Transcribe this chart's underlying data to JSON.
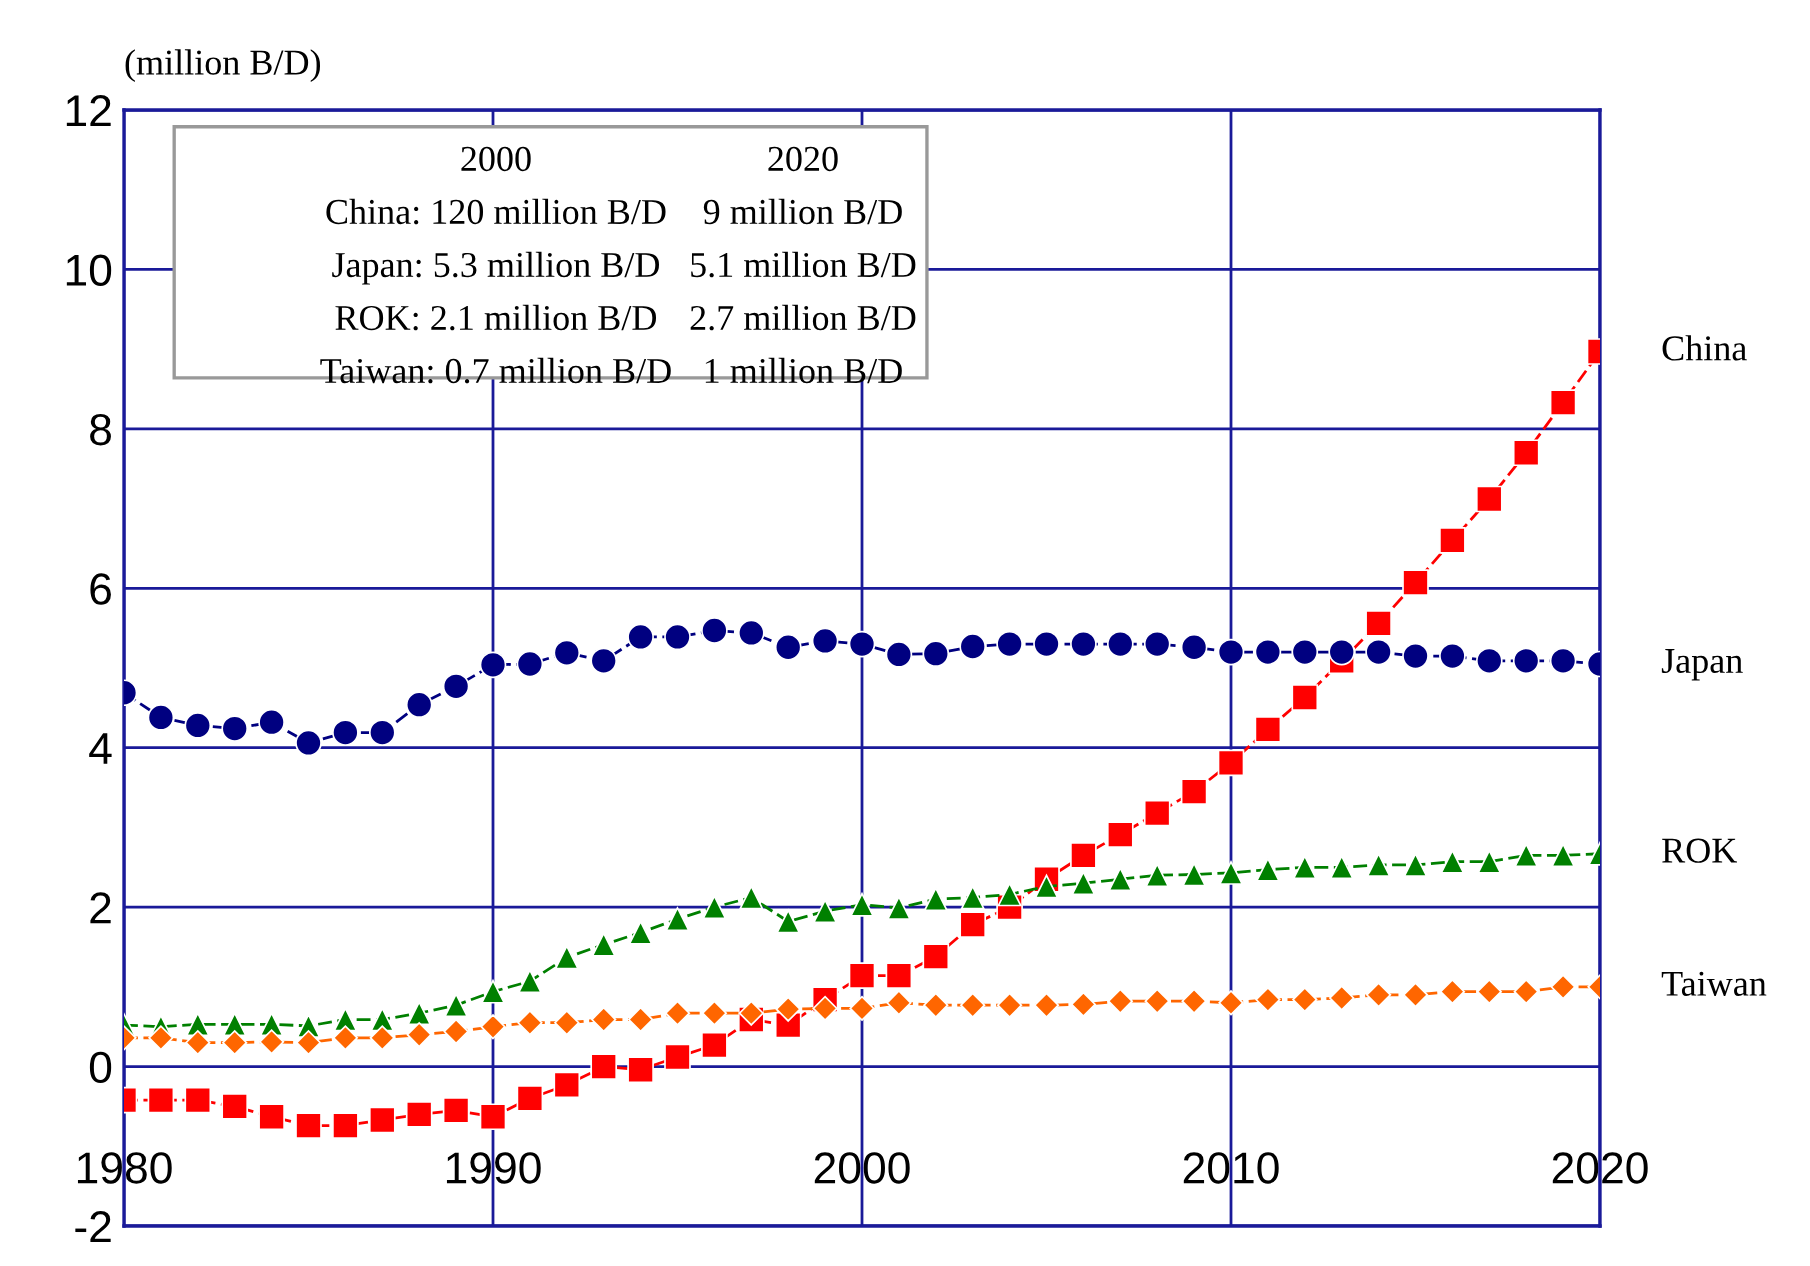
{
  "chart_data": {
    "type": "line",
    "ylabel": "(million B/D)",
    "x": [
      1980,
      1981,
      1982,
      1983,
      1984,
      1985,
      1986,
      1987,
      1988,
      1989,
      1990,
      1991,
      1992,
      1993,
      1994,
      1995,
      1996,
      1997,
      1998,
      1999,
      2000,
      2001,
      2002,
      2003,
      2004,
      2005,
      2006,
      2007,
      2008,
      2009,
      2010,
      2011,
      2012,
      2013,
      2014,
      2015,
      2016,
      2017,
      2018,
      2019,
      2020
    ],
    "series": [
      {
        "name": "China",
        "color": "#ff0000",
        "marker": "square",
        "values": [
          -0.42,
          -0.42,
          -0.42,
          -0.5,
          -0.63,
          -0.74,
          -0.74,
          -0.67,
          -0.6,
          -0.55,
          -0.63,
          -0.4,
          -0.23,
          0.0,
          -0.04,
          0.12,
          0.27,
          0.59,
          0.52,
          0.84,
          1.14,
          1.14,
          1.38,
          1.78,
          2.0,
          2.35,
          2.65,
          2.91,
          3.18,
          3.45,
          3.81,
          4.23,
          4.63,
          5.09,
          5.56,
          6.07,
          6.6,
          7.12,
          7.7,
          8.33,
          8.97
        ]
      },
      {
        "name": "Japan",
        "color": "#000080",
        "marker": "circle",
        "values": [
          4.69,
          4.38,
          4.28,
          4.24,
          4.32,
          4.06,
          4.19,
          4.19,
          4.54,
          4.77,
          5.04,
          5.05,
          5.19,
          5.09,
          5.39,
          5.39,
          5.47,
          5.44,
          5.26,
          5.34,
          5.3,
          5.17,
          5.18,
          5.27,
          5.3,
          5.3,
          5.3,
          5.3,
          5.3,
          5.26,
          5.2,
          5.2,
          5.2,
          5.2,
          5.2,
          5.15,
          5.15,
          5.09,
          5.09,
          5.09,
          5.05
        ]
      },
      {
        "name": "ROK",
        "color": "#008000",
        "marker": "triangle",
        "values": [
          0.52,
          0.5,
          0.53,
          0.53,
          0.53,
          0.51,
          0.59,
          0.59,
          0.67,
          0.77,
          0.94,
          1.07,
          1.37,
          1.53,
          1.68,
          1.85,
          2.0,
          2.12,
          1.82,
          1.95,
          2.03,
          1.99,
          2.1,
          2.12,
          2.16,
          2.26,
          2.3,
          2.35,
          2.4,
          2.41,
          2.43,
          2.47,
          2.5,
          2.5,
          2.53,
          2.53,
          2.57,
          2.57,
          2.65,
          2.65,
          2.67
        ]
      },
      {
        "name": "Taiwan",
        "color": "#ff6600",
        "marker": "diamond",
        "values": [
          0.36,
          0.36,
          0.3,
          0.3,
          0.31,
          0.3,
          0.36,
          0.36,
          0.4,
          0.44,
          0.5,
          0.55,
          0.55,
          0.59,
          0.59,
          0.67,
          0.67,
          0.67,
          0.72,
          0.73,
          0.73,
          0.8,
          0.77,
          0.77,
          0.77,
          0.77,
          0.78,
          0.82,
          0.82,
          0.82,
          0.8,
          0.84,
          0.84,
          0.86,
          0.9,
          0.9,
          0.94,
          0.94,
          0.94,
          1.0,
          1.0
        ]
      }
    ],
    "line_style": "dashed",
    "xlim": [
      1980,
      2020
    ],
    "xticks": [
      1980,
      1990,
      2000,
      2010,
      2020
    ],
    "ylim": [
      -2,
      12
    ],
    "yticks": [
      -2,
      0,
      2,
      4,
      6,
      8,
      10,
      12
    ],
    "grid": true,
    "legend": false,
    "annotations": [
      "2000",
      "2020",
      "China: 120 million B/D",
      "9 million B/D",
      "Japan: 5.3 million B/D",
      "5.1 million B/D",
      "ROK: 2.1 million B/D",
      "2.7 million B/D",
      "Taiwan: 0.7 million B/D",
      "1 million B/D"
    ]
  }
}
